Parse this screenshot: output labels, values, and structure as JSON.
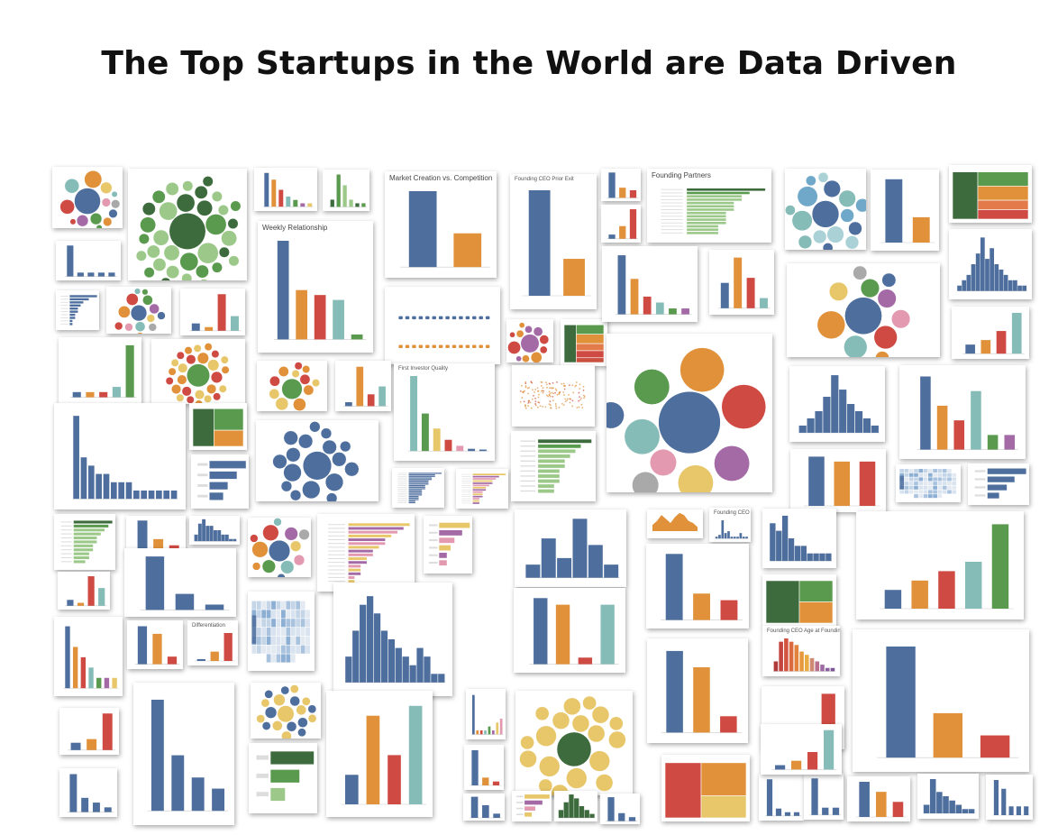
{
  "title": "The Top Startups in the World are Data Driven",
  "palette": {
    "blue": "#4e6f9e",
    "orange": "#e0913a",
    "red": "#cf4a43",
    "teal": "#86bcb8",
    "green": "#5a9a4e",
    "lightgreen": "#9cc98a",
    "darkgreen": "#3d6b3d",
    "yellow": "#e8c76a",
    "purple": "#a46aa6",
    "pink": "#e39ab0",
    "grey": "#a9a9a9"
  },
  "thumbnails": [
    {
      "title": "",
      "kind": "bubble",
      "scheme": "mixed",
      "values": [
        9,
        6,
        5,
        5,
        4,
        4,
        4,
        3,
        3,
        3,
        3,
        2,
        2,
        2
      ]
    },
    {
      "title": "",
      "kind": "bubble",
      "scheme": "green",
      "values": [
        14,
        8,
        8,
        7,
        7,
        7,
        6,
        6,
        6,
        6,
        6,
        5,
        5,
        5,
        5,
        5,
        5,
        5,
        5,
        4,
        4,
        4,
        4,
        4,
        4,
        4,
        4,
        4,
        4,
        4,
        4,
        4,
        4,
        4
      ]
    },
    {
      "title": "",
      "kind": "bar",
      "scheme": "mixed",
      "values": [
        10,
        8,
        5,
        3,
        2,
        1,
        1
      ]
    },
    {
      "title": "",
      "kind": "bar",
      "scheme": "green",
      "values": [
        2,
        9,
        6,
        2,
        1,
        1
      ]
    },
    {
      "title": "Market Creation vs. Competition",
      "kind": "bar",
      "scheme": "bo",
      "values": [
        9,
        4
      ]
    },
    {
      "title": "Founding CEO Prior Exit",
      "kind": "bar",
      "scheme": "bo",
      "values": [
        10,
        3.5
      ]
    },
    {
      "title": "",
      "kind": "bar",
      "scheme": "mixed",
      "values": [
        10,
        4,
        3
      ]
    },
    {
      "title": "Founding Partners",
      "kind": "hbar",
      "scheme": "green",
      "values": [
        10,
        8,
        7,
        7,
        6,
        6,
        6,
        5,
        5,
        5,
        5,
        4,
        4,
        4
      ]
    },
    {
      "title": "",
      "kind": "bubble",
      "scheme": "teal",
      "values": [
        8,
        6,
        6,
        5,
        5,
        5,
        4,
        4,
        4,
        4,
        4,
        4,
        3,
        3,
        3,
        3
      ]
    },
    {
      "title": "",
      "kind": "bar",
      "scheme": "bo",
      "values": [
        10,
        4
      ]
    },
    {
      "title": "",
      "kind": "treemap",
      "scheme": "gro",
      "values": [
        5,
        3,
        3,
        2,
        2
      ]
    },
    {
      "title": "",
      "kind": "bar",
      "scheme": "blue",
      "values": [
        8,
        1,
        1,
        1,
        1
      ]
    },
    {
      "title": "Weekly Relationship",
      "kind": "bar",
      "scheme": "mixed",
      "values": [
        10,
        5,
        4.5,
        4,
        0.5
      ]
    },
    {
      "title": "",
      "kind": "dotrows",
      "scheme": "bo",
      "values": [
        5,
        5
      ]
    },
    {
      "title": "",
      "kind": "bar",
      "scheme": "mixed",
      "values": [
        1,
        3,
        7
      ]
    },
    {
      "title": "",
      "kind": "hist",
      "scheme": "blue",
      "values": [
        1,
        2,
        3,
        5,
        7,
        10,
        6,
        8,
        5,
        4,
        3,
        2,
        2,
        1,
        1
      ]
    },
    {
      "title": "",
      "kind": "hbar",
      "scheme": "blue",
      "values": [
        10,
        7,
        5,
        4,
        3,
        3,
        2,
        2,
        1,
        1
      ]
    },
    {
      "title": "",
      "kind": "bubble",
      "scheme": "mixed",
      "values": [
        8,
        6,
        6,
        5,
        5,
        5,
        4,
        4,
        4,
        4,
        4,
        4,
        3,
        3
      ]
    },
    {
      "title": "",
      "kind": "bar",
      "scheme": "mixed",
      "values": [
        2,
        1,
        10,
        4
      ]
    },
    {
      "title": "",
      "kind": "bubble",
      "scheme": "purple",
      "values": [
        10,
        7,
        6,
        5,
        5,
        4,
        4,
        4,
        4,
        3,
        3,
        3
      ]
    },
    {
      "title": "",
      "kind": "treemap",
      "scheme": "gro",
      "values": [
        7,
        4,
        4,
        3,
        3,
        2
      ]
    },
    {
      "title": "",
      "kind": "bar",
      "scheme": "mixed",
      "values": [
        10,
        6,
        3,
        2,
        1,
        1
      ]
    },
    {
      "title": "",
      "kind": "bar",
      "scheme": "mixed",
      "values": [
        5,
        10,
        6,
        2
      ]
    },
    {
      "title": "",
      "kind": "bubble",
      "scheme": "mixed",
      "values": [
        8,
        6,
        5,
        5,
        4,
        4,
        4,
        4,
        3,
        3,
        3
      ]
    },
    {
      "title": "",
      "kind": "bar",
      "scheme": "mixed",
      "values": [
        1,
        1,
        1,
        2,
        10
      ]
    },
    {
      "title": "",
      "kind": "bubble",
      "scheme": "ryg",
      "values": [
        12,
        6,
        6,
        6,
        5,
        5,
        5,
        5,
        5,
        5,
        5,
        4,
        4,
        4,
        4,
        4,
        4,
        4,
        4,
        4,
        4,
        4,
        4,
        4,
        4,
        4,
        4
      ]
    },
    {
      "title": "",
      "kind": "bubble",
      "scheme": "ryg",
      "values": [
        8,
        5,
        5,
        4,
        4,
        4,
        4,
        4,
        3,
        3,
        3,
        3
      ]
    },
    {
      "title": "",
      "kind": "bar",
      "scheme": "mixed",
      "values": [
        1,
        10,
        3,
        5
      ]
    },
    {
      "title": "First Investor Quality",
      "kind": "bar",
      "scheme": "fiq",
      "values": [
        100,
        50,
        30,
        15,
        7,
        3,
        2
      ]
    },
    {
      "title": "",
      "kind": "scatter",
      "scheme": "orange",
      "values": [
        1
      ]
    },
    {
      "title": "",
      "kind": "bubble",
      "scheme": "mixed",
      "values": [
        7,
        5,
        5,
        4,
        4,
        4,
        4,
        3,
        3,
        3
      ]
    },
    {
      "title": "",
      "kind": "bar",
      "scheme": "mixed",
      "values": [
        2,
        3,
        5,
        9
      ]
    },
    {
      "title": "",
      "kind": "bar",
      "scheme": "blue",
      "values": [
        10,
        5,
        4,
        3,
        3,
        2,
        2,
        2,
        1,
        1,
        1,
        1,
        1,
        1
      ]
    },
    {
      "title": "",
      "kind": "treemap",
      "scheme": "gro",
      "values": [
        5,
        4,
        3
      ]
    },
    {
      "title": "",
      "kind": "hbar",
      "scheme": "blue",
      "values": [
        8,
        6,
        4,
        3
      ]
    },
    {
      "title": "",
      "kind": "bubble",
      "scheme": "blue",
      "values": [
        8,
        5,
        5,
        5,
        4,
        4,
        4,
        4,
        4,
        4,
        4,
        3,
        3,
        3,
        3,
        3,
        3
      ]
    },
    {
      "title": "",
      "kind": "hbar",
      "scheme": "blue",
      "values": [
        10,
        8,
        8,
        7,
        7,
        6,
        6,
        6,
        5,
        5,
        5,
        4,
        4,
        4,
        4,
        3,
        3,
        3,
        2,
        2
      ]
    },
    {
      "title": "",
      "kind": "hbar",
      "scheme": "yp",
      "values": [
        10,
        8,
        7,
        6,
        6,
        5,
        4,
        4,
        3,
        3,
        3,
        2,
        2,
        2
      ]
    },
    {
      "title": "",
      "kind": "hbar",
      "scheme": "green",
      "values": [
        10,
        8,
        7,
        6,
        5,
        5,
        4,
        4,
        4,
        3,
        3
      ]
    },
    {
      "title": "",
      "kind": "bar",
      "scheme": "mixed",
      "values": [
        5,
        3,
        2,
        4,
        1,
        1
      ]
    },
    {
      "title": "",
      "kind": "hist",
      "scheme": "blue",
      "values": [
        1,
        2,
        3,
        5,
        8,
        6,
        4,
        3,
        2,
        1
      ]
    },
    {
      "title": "",
      "kind": "bar",
      "scheme": "mixed",
      "values": [
        10,
        9,
        9
      ]
    },
    {
      "title": "",
      "kind": "map",
      "scheme": "blue",
      "values": [
        1
      ]
    },
    {
      "title": "",
      "kind": "hbar",
      "scheme": "blue",
      "values": [
        10,
        7,
        5,
        3
      ]
    },
    {
      "title": "",
      "kind": "hbar",
      "scheme": "green",
      "values": [
        10,
        9,
        8,
        7,
        6,
        6,
        5,
        5,
        4,
        4,
        3
      ]
    },
    {
      "title": "",
      "kind": "bar",
      "scheme": "mixed",
      "values": [
        10,
        4,
        2
      ]
    },
    {
      "title": "",
      "kind": "hist",
      "scheme": "blue",
      "values": [
        3,
        8,
        10,
        7,
        7,
        5,
        5,
        3,
        3,
        1,
        1
      ]
    },
    {
      "title": "",
      "kind": "bubble",
      "scheme": "mixed",
      "values": [
        8,
        6,
        6,
        5,
        5,
        5,
        4,
        4,
        4,
        3,
        3,
        3,
        3
      ]
    },
    {
      "title": "",
      "kind": "hbar",
      "scheme": "yp",
      "values": [
        10,
        9,
        8,
        7,
        6,
        6,
        5,
        4,
        4,
        3,
        3,
        2,
        2,
        2,
        1,
        1
      ]
    },
    {
      "title": "",
      "kind": "hbar",
      "scheme": "yp",
      "values": [
        8,
        6,
        4,
        3,
        2,
        2
      ]
    },
    {
      "title": "",
      "kind": "hist",
      "scheme": "blue",
      "values": [
        2,
        6,
        3,
        9,
        5,
        2
      ]
    },
    {
      "title": "",
      "kind": "area",
      "scheme": "orange",
      "values": [
        3,
        5,
        8,
        6,
        4,
        7,
        9,
        8,
        5,
        4,
        2
      ]
    },
    {
      "title": "Founding CEO Education Level",
      "kind": "bar",
      "scheme": "blue",
      "values": [
        1,
        2,
        10,
        3,
        4,
        1,
        1,
        1,
        3,
        1,
        1
      ]
    },
    {
      "title": "",
      "kind": "hist",
      "scheme": "blue",
      "values": [
        5,
        4,
        6,
        3,
        2,
        2,
        1,
        1,
        1,
        1
      ]
    },
    {
      "title": "",
      "kind": "bar",
      "scheme": "mixed",
      "values": [
        2,
        3,
        4,
        5,
        9
      ]
    },
    {
      "title": "",
      "kind": "bar",
      "scheme": "mixed",
      "values": [
        2,
        1,
        10,
        6
      ]
    },
    {
      "title": "",
      "kind": "bar",
      "scheme": "blue",
      "values": [
        10,
        3,
        1
      ]
    },
    {
      "title": "",
      "kind": "bar",
      "scheme": "mixed",
      "values": [
        10,
        4,
        3
      ]
    },
    {
      "title": "",
      "kind": "map",
      "scheme": "blue",
      "values": [
        1
      ]
    },
    {
      "title": "",
      "kind": "hist",
      "scheme": "blue",
      "values": [
        3,
        6,
        9,
        10,
        8,
        6,
        5,
        4,
        3,
        2,
        4,
        3,
        1,
        1
      ]
    },
    {
      "title": "",
      "kind": "bar",
      "scheme": "mixed",
      "values": [
        10,
        9,
        1,
        9
      ]
    },
    {
      "title": "",
      "kind": "bar",
      "scheme": "mixed",
      "values": [
        6,
        4,
        3,
        2,
        1,
        1,
        1
      ]
    },
    {
      "title": "",
      "kind": "bar",
      "scheme": "mixed",
      "values": [
        5,
        4,
        1
      ]
    },
    {
      "title": "Differentiation",
      "kind": "bar",
      "scheme": "ore",
      "values": [
        1,
        5,
        15
      ]
    },
    {
      "title": "",
      "kind": "treemap",
      "scheme": "gro",
      "values": [
        6,
        3,
        3
      ]
    },
    {
      "title": "",
      "kind": "bubble",
      "scheme": "yellowblue",
      "values": [
        10,
        7,
        7,
        6,
        6,
        6,
        6,
        6,
        6,
        5,
        5,
        5,
        5,
        5,
        5,
        5,
        5,
        5,
        5
      ]
    },
    {
      "title": "",
      "kind": "bar",
      "scheme": "mixed",
      "values": [
        3,
        9,
        5,
        10
      ]
    },
    {
      "title": "",
      "kind": "bar",
      "scheme": "mixed",
      "values": [
        10,
        1,
        1,
        1,
        2,
        1,
        3,
        4
      ]
    },
    {
      "title": "",
      "kind": "bubble",
      "scheme": "yellow",
      "values": [
        10,
        6,
        6,
        6,
        6,
        5,
        5,
        5,
        5,
        5,
        5,
        5,
        5,
        5,
        4,
        4,
        4,
        4,
        4
      ]
    },
    {
      "title": "",
      "kind": "bar",
      "scheme": "mixed",
      "values": [
        5,
        4,
        1
      ]
    },
    {
      "title": "Founding CEO Age at Founding",
      "kind": "bar",
      "scheme": "age",
      "values": [
        3,
        9,
        10,
        9,
        8,
        6,
        5,
        4,
        3,
        2,
        1,
        1
      ]
    },
    {
      "title": "",
      "kind": "bar",
      "scheme": "mixed",
      "values": [
        10,
        4,
        2
      ]
    },
    {
      "title": "",
      "kind": "bar",
      "scheme": "mixed",
      "values": [
        1,
        2,
        8
      ]
    },
    {
      "title": "",
      "kind": "bar",
      "scheme": "blue",
      "values": [
        10,
        5,
        3,
        2
      ]
    },
    {
      "title": "",
      "kind": "hbar",
      "scheme": "green",
      "values": [
        6,
        4,
        2
      ]
    },
    {
      "title": "",
      "kind": "bar",
      "scheme": "mixed",
      "values": [
        9,
        2,
        1
      ]
    },
    {
      "title": "",
      "kind": "bar",
      "scheme": "mixed",
      "values": [
        2,
        3,
        10
      ]
    },
    {
      "title": "",
      "kind": "bar",
      "scheme": "blue",
      "values": [
        8,
        3,
        2,
        1
      ]
    },
    {
      "title": "",
      "kind": "treemap",
      "scheme": "ryg",
      "values": [
        4,
        3,
        2
      ]
    },
    {
      "title": "",
      "kind": "bar",
      "scheme": "blue",
      "values": [
        5,
        3,
        1
      ]
    },
    {
      "title": "",
      "kind": "hbar",
      "scheme": "yp",
      "values": [
        7,
        5,
        3,
        2
      ]
    },
    {
      "title": "",
      "kind": "hist",
      "scheme": "green",
      "values": [
        2,
        4,
        6,
        5,
        3,
        2,
        1
      ]
    },
    {
      "title": "",
      "kind": "bar",
      "scheme": "blue",
      "values": [
        6,
        2,
        1
      ]
    },
    {
      "title": "",
      "kind": "bar",
      "scheme": "blue",
      "values": [
        10,
        2,
        1,
        1
      ]
    },
    {
      "title": "",
      "kind": "bar",
      "scheme": "blue",
      "values": [
        5,
        1,
        1
      ]
    },
    {
      "title": "",
      "kind": "bar",
      "scheme": "mixed",
      "values": [
        7,
        5,
        3
      ]
    },
    {
      "title": "",
      "kind": "hist",
      "scheme": "blue",
      "values": [
        2,
        8,
        5,
        4,
        3,
        2,
        1,
        1
      ]
    },
    {
      "title": "",
      "kind": "bar",
      "scheme": "blue",
      "values": [
        4,
        3,
        1,
        1,
        1
      ]
    },
    {
      "title": "",
      "kind": "bar",
      "scheme": "mixed",
      "values": [
        1,
        2,
        4,
        9
      ]
    }
  ]
}
